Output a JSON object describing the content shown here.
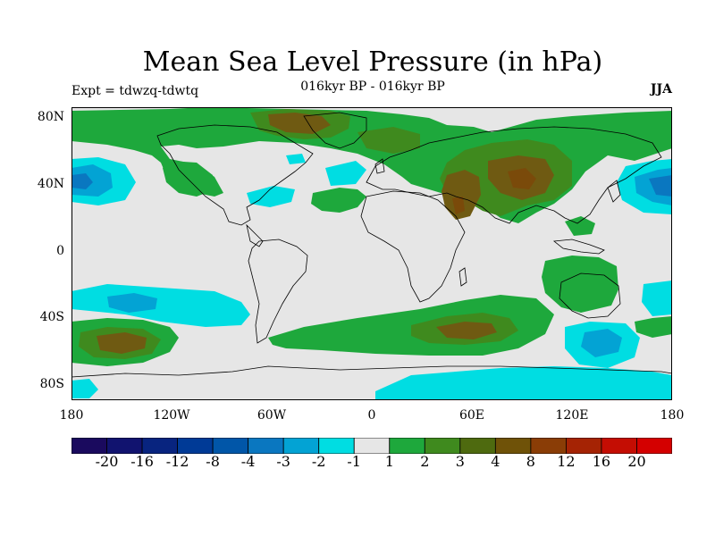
{
  "title": "Mean Sea Level Pressure (in hPa)",
  "subtitle": "016kyr BP - 016kyr BP",
  "left_label": "Expt = tdwzq-tdwtq",
  "right_label": "JJA",
  "lat_labels": [
    "80N",
    "40N",
    "0",
    "40S",
    "80S"
  ],
  "lon_labels": [
    "180",
    "120W",
    "60W",
    "0",
    "60E",
    "120E",
    "180"
  ],
  "colorbar": {
    "colors": [
      "#1a0a5e",
      "#11136f",
      "#08247f",
      "#003a96",
      "#0156a8",
      "#0a77c0",
      "#03a3d4",
      "#00dde2",
      "#e6e6e6",
      "#1ea83c",
      "#3f8a1e",
      "#4e6a0f",
      "#6f5208",
      "#8a3d06",
      "#a52304",
      "#c40d03",
      "#d40000"
    ],
    "labels": [
      "-20",
      "-16",
      "-12",
      "-8",
      "-4",
      "-3",
      "-2",
      "-1",
      "1",
      "2",
      "3",
      "4",
      "8",
      "12",
      "16",
      "20"
    ]
  },
  "map_fields": {
    "background": "#e6e6e6",
    "coast_color": "#000000",
    "levels": [
      "-3",
      "-2",
      "-1",
      "1",
      "2",
      "3",
      "4"
    ]
  }
}
